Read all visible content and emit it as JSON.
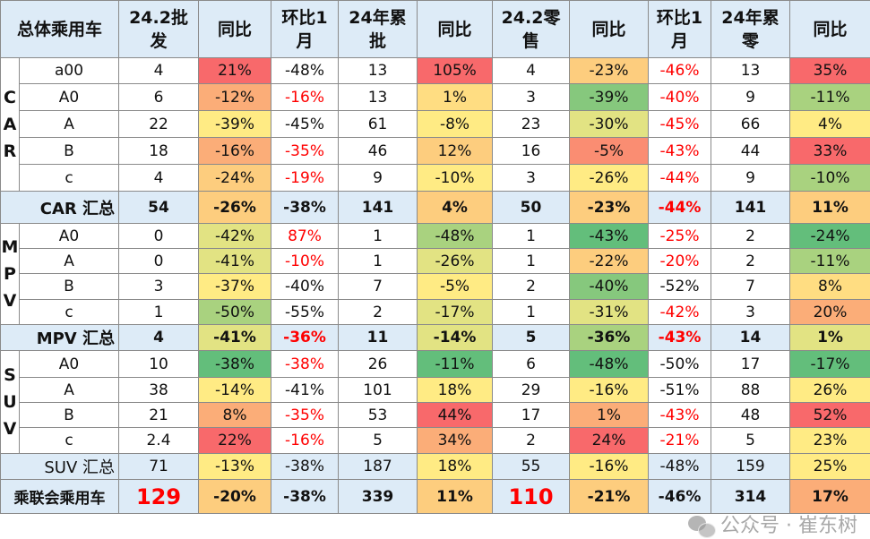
{
  "colors": {
    "R": "#F8696B",
    "RO": "#FA8D72",
    "O": "#FBAD78",
    "LO": "#FDCD7E",
    "LY": "#FFDD82",
    "Y": "#FFEB84",
    "YG": "#E2E383",
    "LG": "#A9D27F",
    "MG": "#86C87D",
    "G": "#63BE7B",
    "W": "#FFFFFF",
    "B": "#DDEBF7",
    "header_bg": "#DDEBF7",
    "negative_text": "#FF0000"
  },
  "header": {
    "corner": "总体乘用车",
    "columns": [
      [
        "24.2批",
        "发"
      ],
      [
        "同比"
      ],
      [
        "环比1",
        "月"
      ],
      [
        "24年累",
        "批"
      ],
      [
        "同比"
      ],
      [
        "24.2零",
        "售"
      ],
      [
        "同比"
      ],
      [
        "环比1",
        "月"
      ],
      [
        "24年累",
        "零"
      ],
      [
        "同比"
      ]
    ]
  },
  "groups": [
    {
      "letters": [
        "C",
        "A",
        "R"
      ],
      "rows": [
        {
          "label": "a00",
          "cells": [
            [
              "4",
              "W",
              0
            ],
            [
              "21%",
              "R",
              0
            ],
            [
              "-48%",
              "W",
              0
            ],
            [
              "13",
              "W",
              0
            ],
            [
              "105%",
              "R",
              0
            ],
            [
              "4",
              "W",
              0
            ],
            [
              "-23%",
              "LO",
              0
            ],
            [
              "-46%",
              "W",
              1
            ],
            [
              "13",
              "W",
              0
            ],
            [
              "35%",
              "R",
              0
            ]
          ]
        },
        {
          "label": "A0",
          "cells": [
            [
              "6",
              "W",
              0
            ],
            [
              "-12%",
              "O",
              0
            ],
            [
              "-16%",
              "W",
              1
            ],
            [
              "13",
              "W",
              0
            ],
            [
              "1%",
              "LY",
              0
            ],
            [
              "3",
              "W",
              0
            ],
            [
              "-39%",
              "MG",
              0
            ],
            [
              "-40%",
              "W",
              1
            ],
            [
              "9",
              "W",
              0
            ],
            [
              "-11%",
              "LG",
              0
            ]
          ]
        },
        {
          "label": "A",
          "cells": [
            [
              "22",
              "W",
              0
            ],
            [
              "-39%",
              "Y",
              0
            ],
            [
              "-45%",
              "W",
              0
            ],
            [
              "61",
              "W",
              0
            ],
            [
              "-8%",
              "Y",
              0
            ],
            [
              "23",
              "W",
              0
            ],
            [
              "-30%",
              "YG",
              0
            ],
            [
              "-45%",
              "W",
              1
            ],
            [
              "66",
              "W",
              0
            ],
            [
              "4%",
              "Y",
              0
            ]
          ]
        },
        {
          "label": "B",
          "cells": [
            [
              "18",
              "W",
              0
            ],
            [
              "-16%",
              "O",
              0
            ],
            [
              "-35%",
              "W",
              1
            ],
            [
              "46",
              "W",
              0
            ],
            [
              "12%",
              "LO",
              0
            ],
            [
              "16",
              "W",
              0
            ],
            [
              "-5%",
              "RO",
              0
            ],
            [
              "-43%",
              "W",
              1
            ],
            [
              "44",
              "W",
              0
            ],
            [
              "33%",
              "R",
              0
            ]
          ]
        },
        {
          "label": "c",
          "cells": [
            [
              "4",
              "W",
              0
            ],
            [
              "-24%",
              "LO",
              0
            ],
            [
              "-19%",
              "W",
              1
            ],
            [
              "9",
              "W",
              0
            ],
            [
              "-10%",
              "Y",
              0
            ],
            [
              "3",
              "W",
              0
            ],
            [
              "-26%",
              "Y",
              0
            ],
            [
              "-44%",
              "W",
              1
            ],
            [
              "9",
              "W",
              0
            ],
            [
              "-10%",
              "LG",
              0
            ]
          ]
        }
      ],
      "summary": {
        "label": "CAR 汇总",
        "bold": true,
        "cells": [
          [
            "54",
            "B",
            0
          ],
          [
            "-26%",
            "LO",
            0
          ],
          [
            "-38%",
            "B",
            0
          ],
          [
            "141",
            "B",
            0
          ],
          [
            "4%",
            "LO",
            0
          ],
          [
            "50",
            "B",
            0
          ],
          [
            "-23%",
            "LO",
            0
          ],
          [
            "-44%",
            "B",
            1
          ],
          [
            "141",
            "B",
            0
          ],
          [
            "11%",
            "LO",
            0
          ]
        ]
      }
    },
    {
      "letters": [
        "M",
        "P",
        "V"
      ],
      "rows": [
        {
          "label": "A0",
          "cells": [
            [
              "0",
              "W",
              0
            ],
            [
              "-42%",
              "YG",
              0
            ],
            [
              "87%",
              "W",
              1
            ],
            [
              "1",
              "W",
              0
            ],
            [
              "-48%",
              "LG",
              0
            ],
            [
              "1",
              "W",
              0
            ],
            [
              "-43%",
              "G",
              0
            ],
            [
              "-25%",
              "W",
              1
            ],
            [
              "2",
              "W",
              0
            ],
            [
              "-24%",
              "G",
              0
            ]
          ]
        },
        {
          "label": "A",
          "cells": [
            [
              "0",
              "W",
              0
            ],
            [
              "-41%",
              "YG",
              0
            ],
            [
              "-10%",
              "W",
              1
            ],
            [
              "1",
              "W",
              0
            ],
            [
              "-26%",
              "YG",
              0
            ],
            [
              "1",
              "W",
              0
            ],
            [
              "-22%",
              "LO",
              0
            ],
            [
              "-20%",
              "W",
              1
            ],
            [
              "2",
              "W",
              0
            ],
            [
              "-11%",
              "LG",
              0
            ]
          ]
        },
        {
          "label": "B",
          "cells": [
            [
              "3",
              "W",
              0
            ],
            [
              "-37%",
              "Y",
              0
            ],
            [
              "-40%",
              "W",
              0
            ],
            [
              "7",
              "W",
              0
            ],
            [
              "-5%",
              "Y",
              0
            ],
            [
              "2",
              "W",
              0
            ],
            [
              "-40%",
              "MG",
              0
            ],
            [
              "-52%",
              "W",
              0
            ],
            [
              "7",
              "W",
              0
            ],
            [
              "8%",
              "LY",
              0
            ]
          ]
        },
        {
          "label": "c",
          "cells": [
            [
              "1",
              "W",
              0
            ],
            [
              "-50%",
              "LG",
              0
            ],
            [
              "-55%",
              "W",
              0
            ],
            [
              "2",
              "W",
              0
            ],
            [
              "-17%",
              "YG",
              0
            ],
            [
              "1",
              "W",
              0
            ],
            [
              "-31%",
              "YG",
              0
            ],
            [
              "-42%",
              "W",
              1
            ],
            [
              "3",
              "W",
              0
            ],
            [
              "20%",
              "O",
              0
            ]
          ]
        }
      ],
      "summary": {
        "label": "MPV 汇总",
        "bold": true,
        "cells": [
          [
            "4",
            "B",
            0
          ],
          [
            "-41%",
            "YG",
            0
          ],
          [
            "-36%",
            "B",
            1
          ],
          [
            "11",
            "B",
            0
          ],
          [
            "-14%",
            "YG",
            0
          ],
          [
            "5",
            "B",
            0
          ],
          [
            "-36%",
            "LG",
            0
          ],
          [
            "-43%",
            "B",
            1
          ],
          [
            "14",
            "B",
            0
          ],
          [
            "1%",
            "YG",
            0
          ]
        ]
      }
    },
    {
      "letters": [
        "S",
        "U",
        "V"
      ],
      "rows": [
        {
          "label": "A0",
          "cells": [
            [
              "10",
              "W",
              0
            ],
            [
              "-38%",
              "G",
              0
            ],
            [
              "-38%",
              "W",
              1
            ],
            [
              "26",
              "W",
              0
            ],
            [
              "-11%",
              "G",
              0
            ],
            [
              "6",
              "W",
              0
            ],
            [
              "-48%",
              "G",
              0
            ],
            [
              "-50%",
              "W",
              0
            ],
            [
              "17",
              "W",
              0
            ],
            [
              "-17%",
              "G",
              0
            ]
          ]
        },
        {
          "label": "A",
          "cells": [
            [
              "38",
              "W",
              0
            ],
            [
              "-14%",
              "Y",
              0
            ],
            [
              "-41%",
              "W",
              0
            ],
            [
              "101",
              "W",
              0
            ],
            [
              "18%",
              "Y",
              0
            ],
            [
              "29",
              "W",
              0
            ],
            [
              "-16%",
              "Y",
              0
            ],
            [
              "-51%",
              "W",
              0
            ],
            [
              "88",
              "W",
              0
            ],
            [
              "26%",
              "Y",
              0
            ]
          ]
        },
        {
          "label": "B",
          "cells": [
            [
              "21",
              "W",
              0
            ],
            [
              "8%",
              "O",
              0
            ],
            [
              "-35%",
              "W",
              1
            ],
            [
              "53",
              "W",
              0
            ],
            [
              "44%",
              "R",
              0
            ],
            [
              "17",
              "W",
              0
            ],
            [
              "1%",
              "O",
              0
            ],
            [
              "-43%",
              "W",
              1
            ],
            [
              "48",
              "W",
              0
            ],
            [
              "52%",
              "R",
              0
            ]
          ]
        },
        {
          "label": "c",
          "cells": [
            [
              "2.4",
              "W",
              0
            ],
            [
              "22%",
              "R",
              0
            ],
            [
              "-16%",
              "W",
              1
            ],
            [
              "5",
              "W",
              0
            ],
            [
              "34%",
              "O",
              0
            ],
            [
              "2",
              "W",
              0
            ],
            [
              "24%",
              "R",
              0
            ],
            [
              "-21%",
              "W",
              1
            ],
            [
              "5",
              "W",
              0
            ],
            [
              "23%",
              "Y",
              0
            ]
          ]
        }
      ],
      "summary": {
        "label": "SUV 汇总",
        "bold": false,
        "cells": [
          [
            "71",
            "B",
            0
          ],
          [
            "-13%",
            "Y",
            0
          ],
          [
            "-38%",
            "B",
            0
          ],
          [
            "187",
            "B",
            0
          ],
          [
            "18%",
            "Y",
            0
          ],
          [
            "55",
            "B",
            0
          ],
          [
            "-16%",
            "Y",
            0
          ],
          [
            "-48%",
            "B",
            0
          ],
          [
            "159",
            "B",
            0
          ],
          [
            "25%",
            "Y",
            0
          ]
        ]
      }
    }
  ],
  "total": {
    "label": "乘联会乘用车",
    "cells": [
      [
        "129",
        "B",
        1
      ],
      [
        "-20%",
        "LO",
        0
      ],
      [
        "-38%",
        "B",
        0
      ],
      [
        "339",
        "B",
        0
      ],
      [
        "11%",
        "LO",
        0
      ],
      [
        "110",
        "B",
        1
      ],
      [
        "-21%",
        "LO",
        0
      ],
      [
        "-46%",
        "B",
        0
      ],
      [
        "314",
        "B",
        0
      ],
      [
        "17%",
        "O",
        0
      ]
    ]
  },
  "watermark": {
    "text": "公众号 · 崔东树",
    "icon": "wechat-icon"
  }
}
